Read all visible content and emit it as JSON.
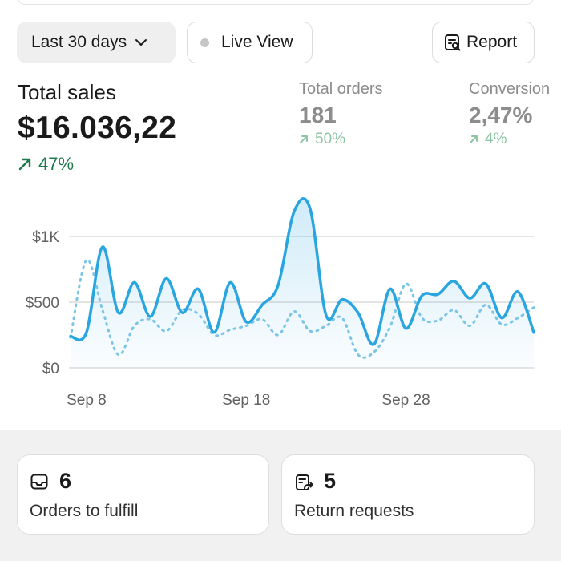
{
  "toolbar": {
    "date_range_label": "Last 30 days",
    "live_view_label": "Live View",
    "report_label": "Report"
  },
  "metrics": {
    "total_sales": {
      "title": "Total sales",
      "value": "$16.036,22",
      "change": "47%"
    },
    "total_orders": {
      "title": "Total orders",
      "value": "181",
      "change": "50%"
    },
    "conversion": {
      "title": "Conversion",
      "value": "2,47%",
      "change": "4%"
    }
  },
  "colors": {
    "accent": "#29a5e0",
    "comparison": "#7cc5e6",
    "positive": "#1f7a4a",
    "muted_positive": "#8fc4a6"
  },
  "chart_data": {
    "type": "line",
    "x": [
      "Sep 7",
      "Sep 8",
      "Sep 9",
      "Sep 10",
      "Sep 11",
      "Sep 12",
      "Sep 13",
      "Sep 14",
      "Sep 15",
      "Sep 16",
      "Sep 17",
      "Sep 18",
      "Sep 19",
      "Sep 20",
      "Sep 21",
      "Sep 22",
      "Sep 23",
      "Sep 24",
      "Sep 25",
      "Sep 26",
      "Sep 27",
      "Sep 28",
      "Sep 29",
      "Sep 30",
      "Oct 1",
      "Oct 2",
      "Oct 3",
      "Oct 4",
      "Oct 5",
      "Oct 6"
    ],
    "x_ticks": [
      "Sep 8",
      "Sep 18",
      "Sep 28"
    ],
    "y_ticks": [
      "$0",
      "$500",
      "$1K"
    ],
    "ylim": [
      0,
      1300
    ],
    "grid": true,
    "series": [
      {
        "values": [
          240,
          270,
          920,
          420,
          650,
          390,
          680,
          420,
          600,
          270,
          650,
          350,
          480,
          630,
          1190,
          1210,
          400,
          520,
          420,
          180,
          600,
          300,
          550,
          560,
          660,
          530,
          640,
          380,
          580,
          270
        ]
      },
      {
        "values": [
          230,
          820,
          440,
          100,
          320,
          370,
          280,
          440,
          410,
          250,
          290,
          320,
          370,
          250,
          430,
          280,
          320,
          380,
          100,
          120,
          310,
          640,
          380,
          360,
          440,
          320,
          480,
          330,
          380,
          460
        ]
      }
    ]
  },
  "cards": [
    {
      "icon": "inbox-icon",
      "count": "6",
      "label": "Orders to fulfill"
    },
    {
      "icon": "return-icon",
      "count": "5",
      "label": "Return requests"
    }
  ]
}
